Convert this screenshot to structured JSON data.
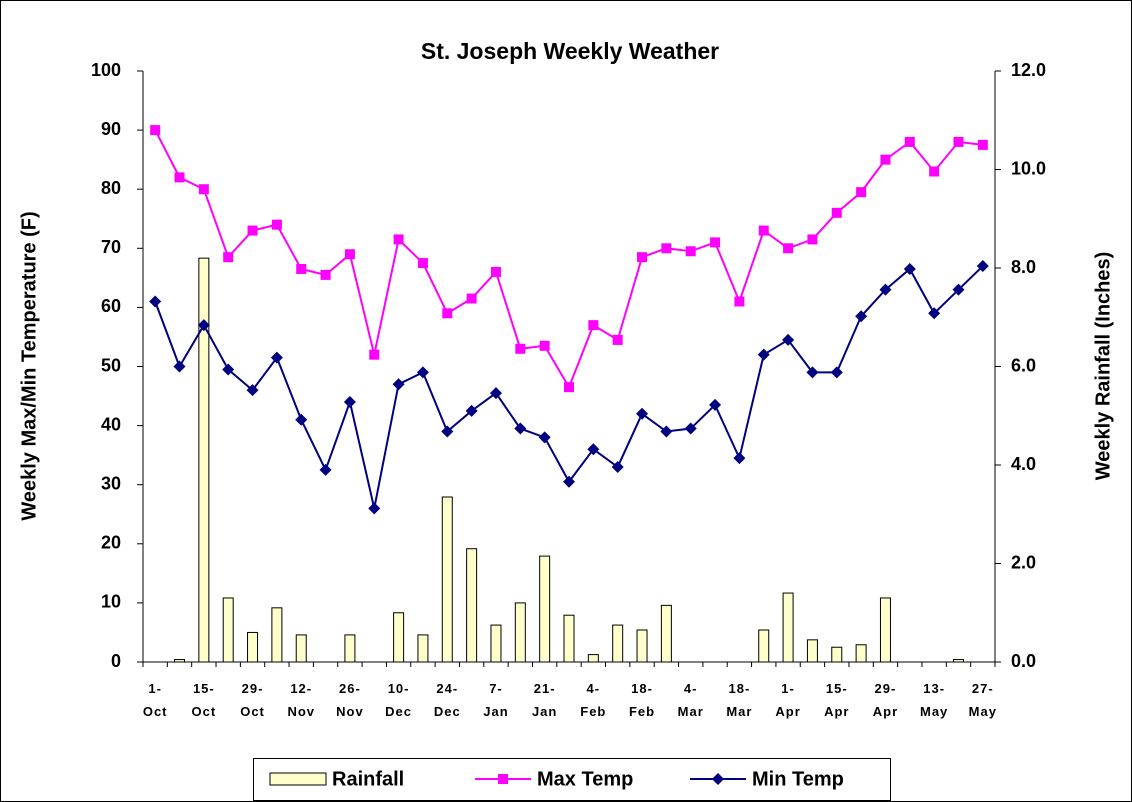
{
  "chart_data": {
    "type": "combo",
    "title": "St. Joseph Weekly Weather",
    "ylabel": "Weekly Max/Min Temperature (F)",
    "y2label": "Weekly Rainfall (Inches)",
    "categories": [
      "1-Oct",
      null,
      "15-Oct",
      null,
      "29-Oct",
      null,
      "12-Nov",
      null,
      "26-Nov",
      null,
      "10-Dec",
      null,
      "24-Dec",
      null,
      "7-Jan",
      null,
      "21-Jan",
      null,
      "4-Feb",
      null,
      "18-Feb",
      null,
      "4-Mar",
      null,
      "18-Mar",
      null,
      "1-Apr",
      null,
      "15-Apr",
      null,
      "29-Apr",
      null,
      "13-May",
      null,
      "27-May"
    ],
    "ylim": [
      0,
      100
    ],
    "yticks": [
      0,
      10,
      20,
      30,
      40,
      50,
      60,
      70,
      80,
      90,
      100
    ],
    "y2lim": [
      0,
      12
    ],
    "y2ticks": [
      {
        "value": 0,
        "label": "0.0"
      },
      {
        "value": 2,
        "label": "2.0"
      },
      {
        "value": 4,
        "label": "4.0"
      },
      {
        "value": 6,
        "label": "6.0"
      },
      {
        "value": 8,
        "label": "8.0"
      },
      {
        "value": 10,
        "label": "10.0"
      },
      {
        "value": 12,
        "label": "12.0"
      }
    ],
    "legend": "bottom",
    "series": [
      {
        "name": "Rainfall",
        "type": "bar",
        "axis": "y2",
        "color": "#ffffcc",
        "values": [
          0,
          0.05,
          8.2,
          1.3,
          0.6,
          1.1,
          0.55,
          0,
          0.55,
          0,
          1.0,
          0.55,
          3.35,
          2.3,
          0.75,
          1.2,
          2.15,
          0.95,
          0.15,
          0.75,
          0.65,
          1.15,
          0,
          0,
          0,
          0.65,
          1.4,
          0.45,
          0.3,
          0.35,
          1.3,
          0,
          0,
          0.05,
          0
        ]
      },
      {
        "name": "Max Temp",
        "type": "line",
        "marker": "square",
        "color": "#ff00ff",
        "values": [
          90,
          82,
          80,
          68.5,
          73,
          74,
          66.5,
          65.5,
          69,
          52,
          71.5,
          67.5,
          59,
          61.5,
          66,
          53,
          53.5,
          46.5,
          57,
          54.5,
          68.5,
          70,
          69.5,
          71,
          61,
          73,
          70,
          71.5,
          76,
          79.5,
          85,
          88,
          83,
          88,
          87.5
        ]
      },
      {
        "name": "Min Temp",
        "type": "line",
        "marker": "diamond",
        "color": "#000080",
        "values": [
          61,
          50,
          57,
          49.5,
          46,
          51.5,
          41,
          32.5,
          44,
          26,
          47,
          49,
          39,
          42.5,
          45.5,
          39.5,
          38,
          30.5,
          36,
          33,
          42,
          39,
          39.5,
          43.5,
          34.5,
          52,
          54.5,
          49,
          49,
          58.5,
          63,
          66.5,
          59,
          63,
          67
        ]
      }
    ]
  }
}
